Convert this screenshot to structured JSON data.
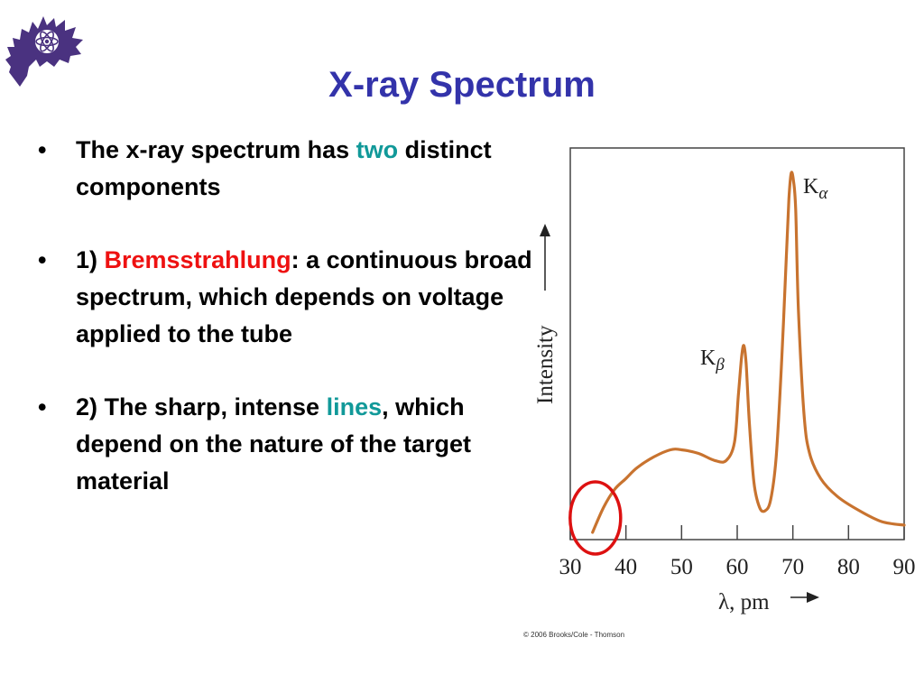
{
  "slide": {
    "title": "X-ray Spectrum",
    "bullets": [
      {
        "dot": "•",
        "parts": [
          "The x-ray spectrum has ",
          "two",
          " distinct components"
        ]
      },
      {
        "dot": "•",
        "parts": [
          "1) ",
          "Bremsstrahlung",
          ": a continuous broad spectrum, which depends on voltage applied to the tube"
        ]
      },
      {
        "dot": "•",
        "parts": [
          "2) The sharp, intense ",
          "lines",
          ", which depend on the nature of the target material"
        ]
      }
    ],
    "logo": {
      "icon": "horned-frog-atom-logo"
    }
  },
  "chart_data": {
    "type": "line",
    "xlabel": "λ, pm",
    "ylabel": "Intensity",
    "x_ticks": [
      30,
      40,
      50,
      60,
      70,
      80,
      90
    ],
    "xlim": [
      30,
      90
    ],
    "ylim": [
      0,
      1
    ],
    "series": [
      {
        "x": [
          34,
          36,
          38,
          40,
          42,
          45,
          48,
          50,
          53,
          56,
          58,
          59.5,
          60.2,
          60.8,
          61.2,
          61.6,
          62.2,
          63,
          64,
          65,
          66,
          67,
          68,
          68.8,
          69.3,
          69.7,
          70.1,
          70.5,
          71,
          72,
          73,
          75,
          78,
          82,
          86,
          90
        ],
        "y": [
          0.0,
          0.07,
          0.12,
          0.15,
          0.18,
          0.21,
          0.23,
          0.23,
          0.22,
          0.2,
          0.2,
          0.25,
          0.38,
          0.49,
          0.52,
          0.47,
          0.3,
          0.14,
          0.07,
          0.06,
          0.09,
          0.21,
          0.48,
          0.76,
          0.93,
          1.0,
          0.98,
          0.9,
          0.62,
          0.33,
          0.22,
          0.15,
          0.1,
          0.06,
          0.03,
          0.02
        ]
      }
    ],
    "annotations": [
      {
        "label": "K",
        "sub": "α",
        "x": 70,
        "y": 1.0
      },
      {
        "label": "K",
        "sub": "β",
        "x": 61.2,
        "y": 0.52
      }
    ],
    "highlight": {
      "type": "circle",
      "x": 34.5,
      "color": "#dd1111"
    },
    "line_color": "#c8732f",
    "copyright": "© 2006 Brooks/Cole - Thomson"
  }
}
